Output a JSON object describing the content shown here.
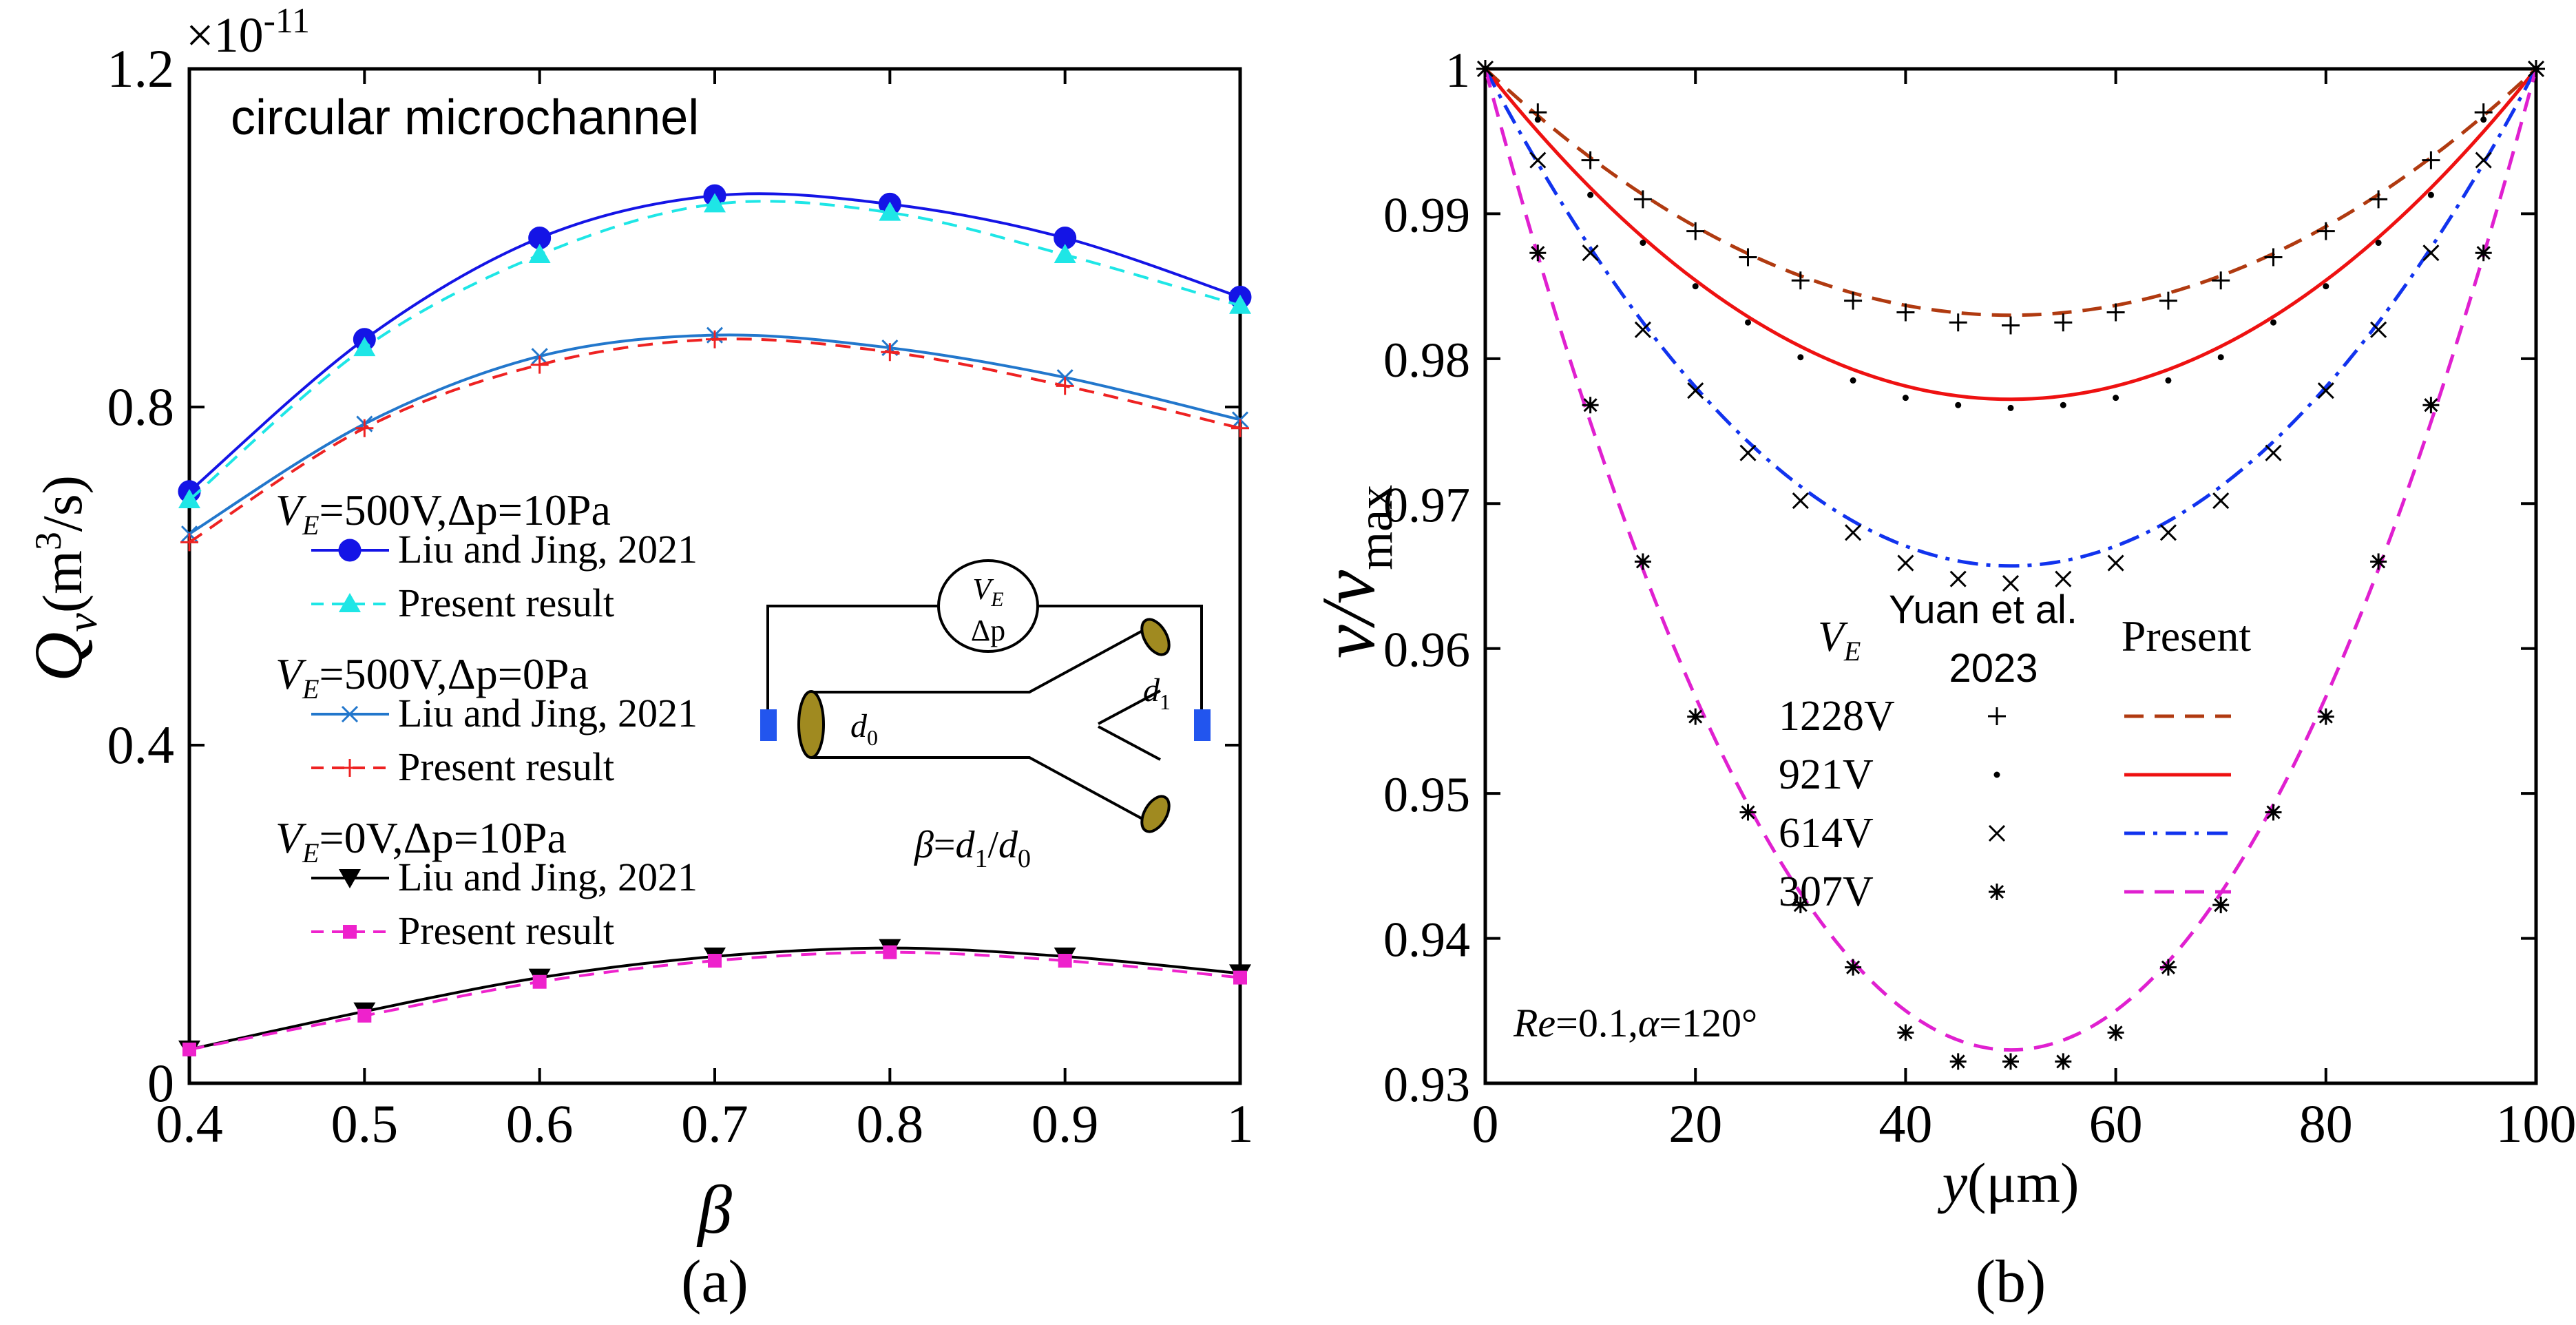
{
  "colors": {
    "blue": "#1414e6",
    "cyan": "#1ee6e6",
    "steel": "#2277cc",
    "red": "#ee2222",
    "black": "#000000",
    "magenta": "#ee22cc",
    "brown": "#b03a10",
    "red2": "#ee1111",
    "blue2": "#1133ee",
    "magenta2": "#e020d0",
    "olive": "#a08a20",
    "electrode": "#2255ee"
  },
  "panel_a": {
    "caption": "(a)",
    "title": "circular microchannel",
    "exponent_base": "×10",
    "exponent_power": "-11",
    "xlabel": "β",
    "ylabel_main": "Q",
    "ylabel_sub": "v",
    "ylabel_units_pre": "(m",
    "ylabel_units_sup": "3",
    "ylabel_units_post": "/s)",
    "legend": [
      {
        "header_v": "V",
        "header_sub": "E",
        "header_rest": "=500V,Δp=10Pa",
        "items": [
          "Liu and Jing, 2021",
          "Present result"
        ]
      },
      {
        "header_v": "V",
        "header_sub": "E",
        "header_rest": "=500V,Δp=0Pa",
        "items": [
          "Liu and Jing, 2021",
          "Present result"
        ]
      },
      {
        "header_v": "V",
        "header_sub": "E",
        "header_rest": "=0V,Δp=10Pa",
        "items": [
          "Liu and Jing, 2021",
          "Present result"
        ]
      }
    ],
    "inset": {
      "source_v": "V",
      "source_sub": "E",
      "source_dp": "Δp",
      "d0": "d",
      "d0_sub": "0",
      "d1": "d",
      "d1_sub": "1",
      "beta_lhs": "β",
      "beta_eq": "=",
      "beta_num": "d",
      "beta_num_sub": "1",
      "beta_slash": "/",
      "beta_den": "d",
      "beta_den_sub": "0"
    }
  },
  "panel_b": {
    "caption": "(b)",
    "xlabel_main": "y",
    "xlabel_units": "(μm)",
    "ylabel_main": "v/v",
    "ylabel_sub": "max",
    "annotation_re": "Re",
    "annotation_rest1": "=0.1,",
    "annotation_alpha": "α",
    "annotation_rest2": "=120°",
    "legend_col1_v": "V",
    "legend_col1_sub": "E",
    "legend_col2_line1": "Yuan et al.",
    "legend_col2_line2": "2023",
    "legend_col3": "Present",
    "legend_rows": [
      "1228V",
      "921V",
      "614V",
      "307V"
    ]
  },
  "chart_data": [
    {
      "type": "line",
      "title": "circular microchannel",
      "xlabel": "β",
      "ylabel": "Q_v (m^3/s) ×10^-11",
      "xlim": [
        0.4,
        1.0
      ],
      "ylim": [
        0,
        1.2
      ],
      "xticks": [
        "0.4",
        "0.5",
        "0.6",
        "0.7",
        "0.8",
        "0.9",
        "1"
      ],
      "yticks": [
        "0",
        "0.4",
        "0.8",
        "1.2"
      ],
      "x": [
        0.4,
        0.5,
        0.6,
        0.7,
        0.8,
        0.9,
        1.0
      ],
      "series": [
        {
          "name": "V_E=500V, Δp=10Pa Liu and Jing, 2021",
          "values": [
            0.7,
            0.88,
            1.0,
            1.05,
            1.04,
            1.0,
            0.93
          ]
        },
        {
          "name": "V_E=500V, Δp=10Pa Present result",
          "values": [
            0.69,
            0.87,
            0.98,
            1.04,
            1.03,
            0.98,
            0.92
          ]
        },
        {
          "name": "V_E=500V, Δp=0Pa Liu and Jing, 2021",
          "values": [
            0.65,
            0.78,
            0.86,
            0.885,
            0.87,
            0.835,
            0.785
          ]
        },
        {
          "name": "V_E=500V, Δp=0Pa Present result",
          "values": [
            0.64,
            0.775,
            0.85,
            0.88,
            0.865,
            0.825,
            0.775
          ]
        },
        {
          "name": "V_E=0V, Δp=10Pa Liu and Jing, 2021",
          "values": [
            0.04,
            0.085,
            0.125,
            0.15,
            0.16,
            0.15,
            0.13
          ]
        },
        {
          "name": "V_E=0V, Δp=10Pa Present result",
          "values": [
            0.04,
            0.08,
            0.12,
            0.145,
            0.155,
            0.145,
            0.125
          ]
        }
      ]
    },
    {
      "type": "line",
      "xlabel": "y(μm)",
      "ylabel": "v/v_max",
      "xlim": [
        0,
        100
      ],
      "ylim": [
        0.93,
        1.0
      ],
      "xticks": [
        "0",
        "20",
        "40",
        "60",
        "80",
        "100"
      ],
      "yticks": [
        "0.93",
        "0.94",
        "0.95",
        "0.96",
        "0.97",
        "0.98",
        "0.99",
        "1"
      ],
      "annotation": "Re=0.1, α=120°",
      "series": [
        {
          "name": "1228V",
          "min": 0.983,
          "markers_x": [
            0,
            5,
            10,
            15,
            20,
            25,
            30,
            35,
            40,
            45,
            50,
            55,
            60,
            65,
            70,
            75,
            80,
            85,
            90,
            95,
            100
          ],
          "markers_y": [
            1.0,
            0.997,
            0.9937,
            0.991,
            0.9888,
            0.987,
            0.9854,
            0.984,
            0.9832,
            0.9825,
            0.9823,
            0.9825,
            0.9832,
            0.984,
            0.9854,
            0.987,
            0.9888,
            0.991,
            0.9937,
            0.997,
            1.0
          ]
        },
        {
          "name": "921V",
          "min": 0.9772,
          "markers_x": [
            0,
            5,
            10,
            15,
            20,
            25,
            30,
            35,
            40,
            45,
            50,
            55,
            60,
            65,
            70,
            75,
            80,
            85,
            90,
            95,
            100
          ],
          "markers_y": [
            1.0,
            0.9965,
            0.9913,
            0.988,
            0.985,
            0.9825,
            0.9801,
            0.9785,
            0.9773,
            0.9768,
            0.9766,
            0.9768,
            0.9773,
            0.9785,
            0.9801,
            0.9825,
            0.985,
            0.988,
            0.9913,
            0.9965,
            1.0
          ]
        },
        {
          "name": "614V",
          "min": 0.9657,
          "markers_x": [
            0,
            5,
            10,
            15,
            20,
            25,
            30,
            35,
            40,
            45,
            50,
            55,
            60,
            65,
            70,
            75,
            80,
            85,
            90,
            95,
            100
          ],
          "markers_y": [
            1.0,
            0.9937,
            0.9873,
            0.982,
            0.9778,
            0.9735,
            0.9702,
            0.968,
            0.9659,
            0.9648,
            0.9645,
            0.9648,
            0.9659,
            0.968,
            0.9702,
            0.9735,
            0.9778,
            0.982,
            0.9873,
            0.9937,
            1.0
          ]
        },
        {
          "name": "307V",
          "min": 0.9323,
          "markers_x": [
            0,
            5,
            10,
            15,
            20,
            25,
            30,
            35,
            40,
            45,
            50,
            55,
            60,
            65,
            70,
            75,
            80,
            85,
            90,
            95,
            100
          ],
          "markers_y": [
            1.0,
            0.9873,
            0.9768,
            0.966,
            0.9553,
            0.9487,
            0.9423,
            0.938,
            0.9335,
            0.9315,
            0.9315,
            0.9315,
            0.9335,
            0.938,
            0.9423,
            0.9487,
            0.9553,
            0.966,
            0.9768,
            0.9873,
            1.0
          ]
        }
      ]
    }
  ]
}
